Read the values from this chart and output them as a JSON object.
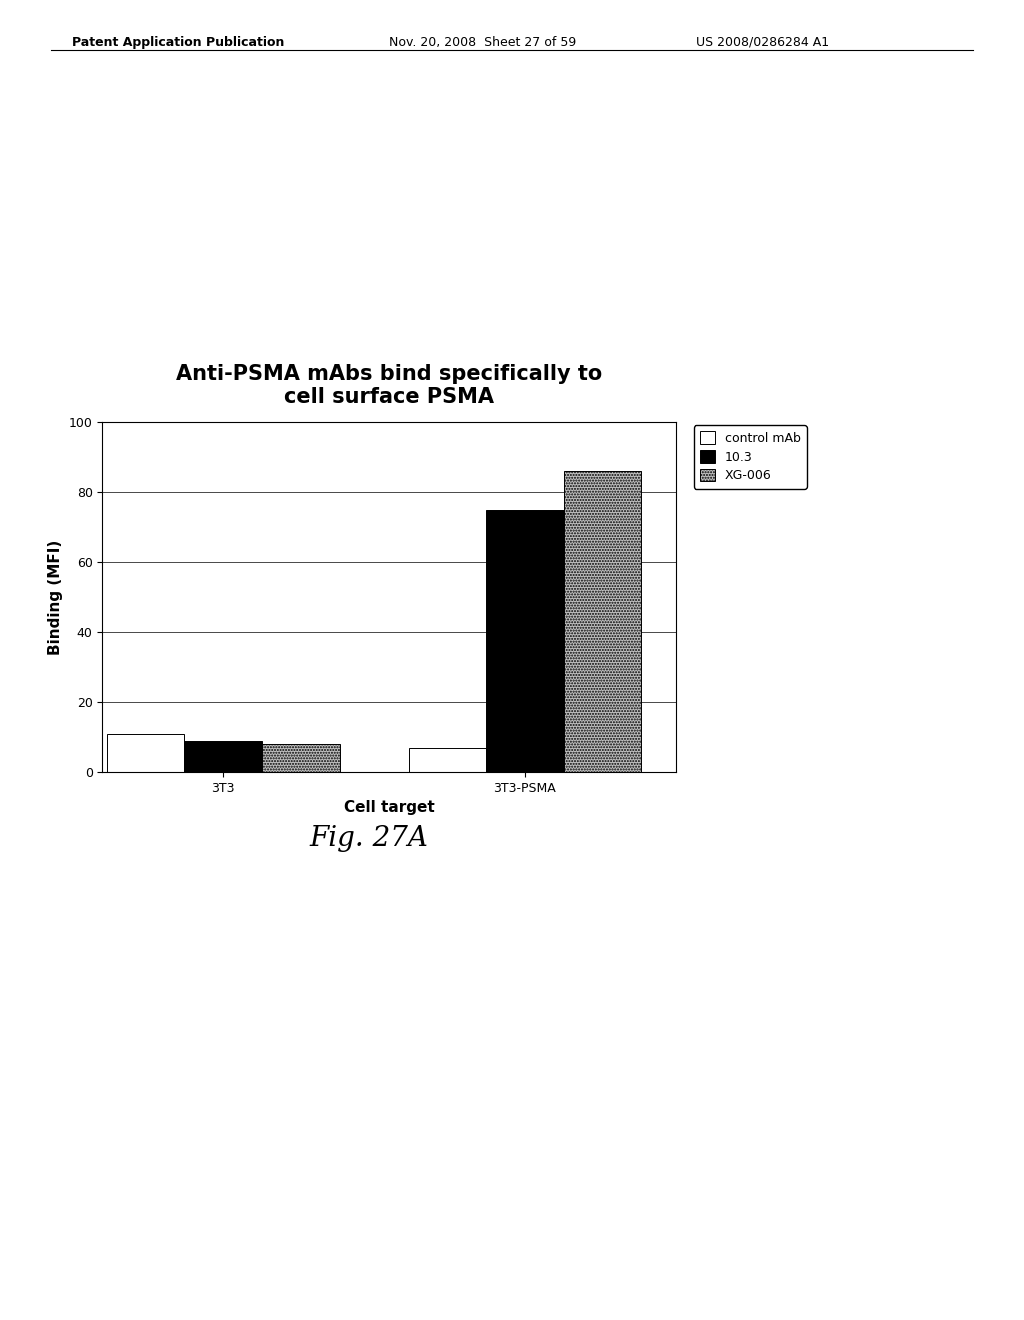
{
  "title": "Anti-PSMA mAbs bind specifically to\ncell surface PSMA",
  "xlabel": "Cell target",
  "ylabel": "Binding (MFI)",
  "categories": [
    "3T3",
    "3T3-PSMA"
  ],
  "series": {
    "control mAb": [
      11,
      7
    ],
    "10.3": [
      9,
      75
    ],
    "XG-006": [
      8,
      86
    ]
  },
  "colors": {
    "control mAb": "#ffffff",
    "10.3": "#000000",
    "XG-006": "#b0b0b0"
  },
  "ylim": [
    0,
    100
  ],
  "yticks": [
    0,
    20,
    40,
    60,
    80,
    100
  ],
  "bar_width": 0.18,
  "header_text_left": "Patent Application Publication",
  "header_text_mid": "Nov. 20, 2008  Sheet 27 of 59",
  "header_text_right": "US 2008/0286284 A1",
  "fig_label": "Fig. 27A",
  "title_fontsize": 15,
  "axis_label_fontsize": 11,
  "tick_fontsize": 9,
  "legend_fontsize": 9,
  "header_fontsize": 9
}
